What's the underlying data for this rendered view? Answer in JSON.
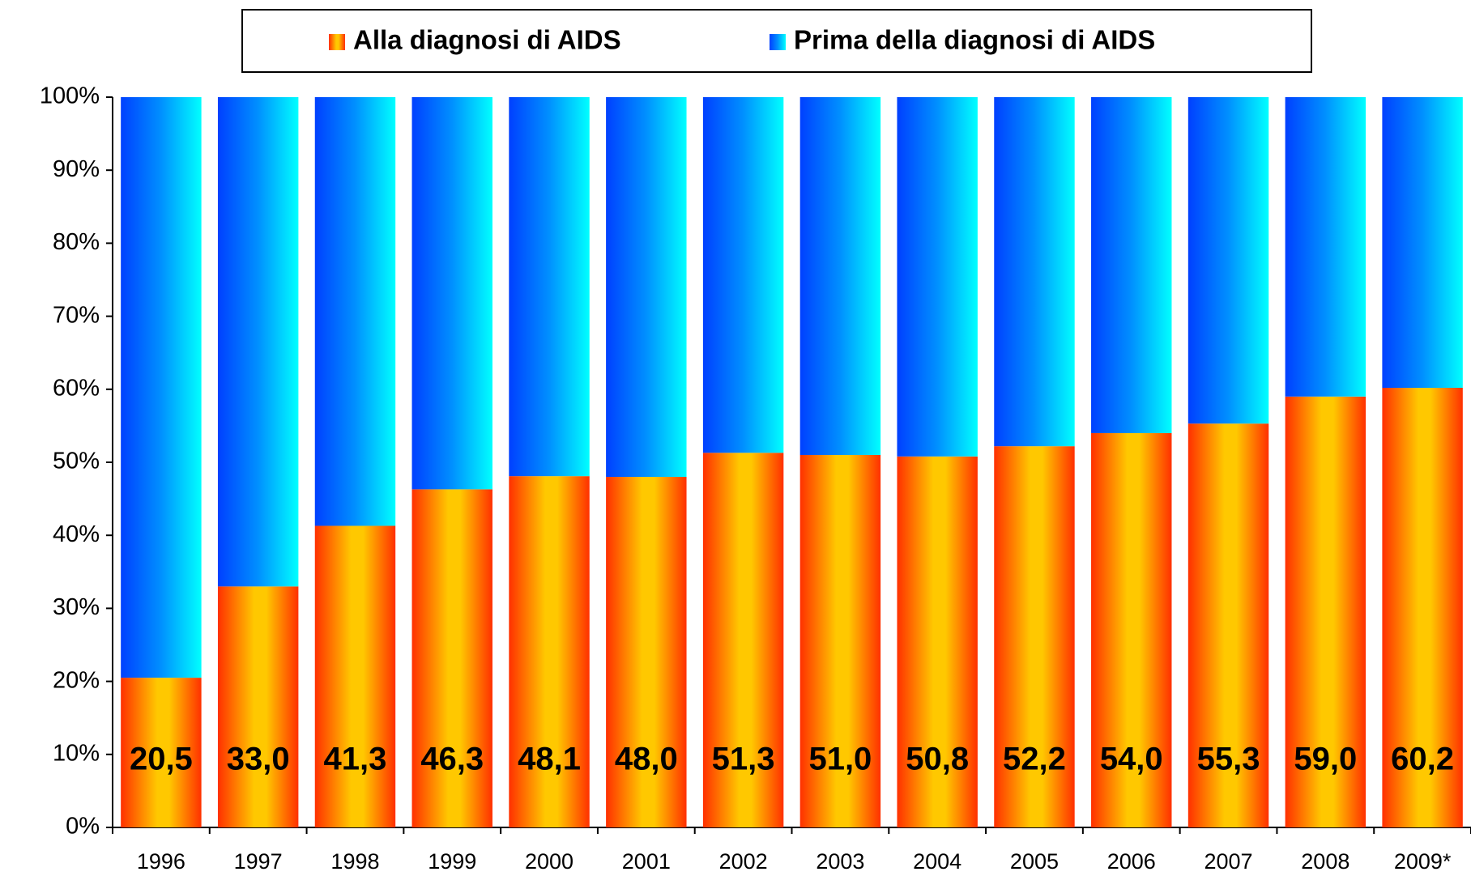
{
  "chart_data": {
    "type": "stacked_bar",
    "categories": [
      "1996",
      "1997",
      "1998",
      "1999",
      "2000",
      "2001",
      "2002",
      "2003",
      "2004",
      "2005",
      "2006",
      "2007",
      "2008",
      "2009*"
    ],
    "series": [
      {
        "name": "Alla diagnosi di AIDS",
        "color": "#ffc800",
        "values": [
          20.5,
          33.0,
          41.3,
          46.3,
          48.1,
          48.0,
          51.3,
          51.0,
          50.8,
          52.2,
          54.0,
          55.3,
          59.0,
          60.2
        ],
        "value_labels": [
          "20,5",
          "33,0",
          "41,3",
          "46,3",
          "48,1",
          "48,0",
          "51,3",
          "51,0",
          "50,8",
          "52,2",
          "54,0",
          "55,3",
          "59,0",
          "60,2"
        ]
      },
      {
        "name": "Prima della diagnosi di AIDS",
        "color": "#0090ff",
        "values": [
          79.5,
          67.0,
          58.7,
          53.7,
          51.9,
          52.0,
          48.7,
          49.0,
          49.2,
          47.8,
          46.0,
          44.7,
          41.0,
          39.8
        ]
      }
    ],
    "ylim": [
      0,
      100
    ],
    "yticks": [
      {
        "value": 0,
        "label": "0%"
      },
      {
        "value": 10,
        "label": "10%"
      },
      {
        "value": 20,
        "label": "20%"
      },
      {
        "value": 30,
        "label": "30%"
      },
      {
        "value": 40,
        "label": "40%"
      },
      {
        "value": 50,
        "label": "50%"
      },
      {
        "value": 60,
        "label": "60%"
      },
      {
        "value": 70,
        "label": "70%"
      },
      {
        "value": 80,
        "label": "80%"
      },
      {
        "value": 90,
        "label": "90%"
      },
      {
        "value": 100,
        "label": "100%"
      }
    ],
    "legend": "top"
  }
}
